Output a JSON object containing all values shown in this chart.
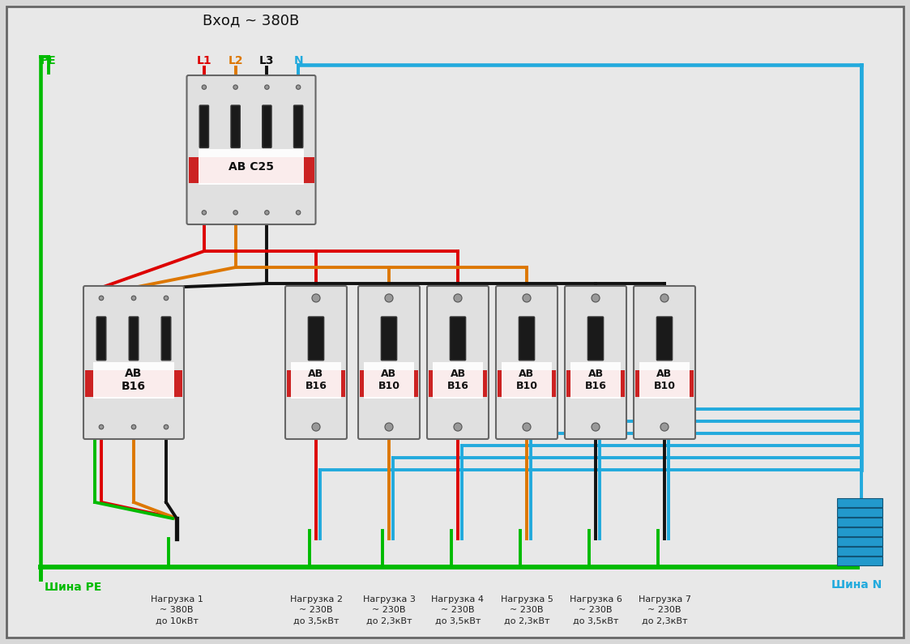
{
  "title": "Вход ~ 380В",
  "bg_color": "#d8d8d8",
  "border_color": "#888888",
  "wire_colors": {
    "PE": "#00bb00",
    "L1": "#dd0000",
    "L2": "#dd7700",
    "L3": "#111111",
    "N": "#22aadd"
  },
  "shina_PE_label": "Шина РЕ",
  "shina_N_label": "Шина N",
  "input_labels": [
    "PE",
    "L1",
    "L2",
    "L3",
    "N"
  ],
  "main_breaker_label": "АВ С25",
  "load_breaker_label": "АВ\nВ16",
  "sub_breakers": [
    {
      "label": "АВ\nВ16",
      "phase": "L1"
    },
    {
      "label": "АВ\nВ10",
      "phase": "L2"
    },
    {
      "label": "АВ\nВ16",
      "phase": "L1"
    },
    {
      "label": "АВ\nВ10",
      "phase": "L2"
    },
    {
      "label": "АВ\nВ16",
      "phase": "L3"
    },
    {
      "label": "АВ\nВ10",
      "phase": "L3"
    }
  ],
  "loads": [
    {
      "label": "Нагрузка 1\n~ 380В\nдо 10кВт"
    },
    {
      "label": "Нагрузка 2\n~ 230В\nдо 3,5кВт"
    },
    {
      "label": "Нагрузка 3\n~ 230В\nдо 2,3кВт"
    },
    {
      "label": "Нагрузка 4\n~ 230В\nдо 3,5кВт"
    },
    {
      "label": "Нагрузка 5\n~ 230В\nдо 2,3кВт"
    },
    {
      "label": "Нагрузка 6\n~ 230В\nдо 3,5кВт"
    },
    {
      "label": "Нагрузка 7\n~ 230В\nдо 2,3кВт"
    }
  ]
}
